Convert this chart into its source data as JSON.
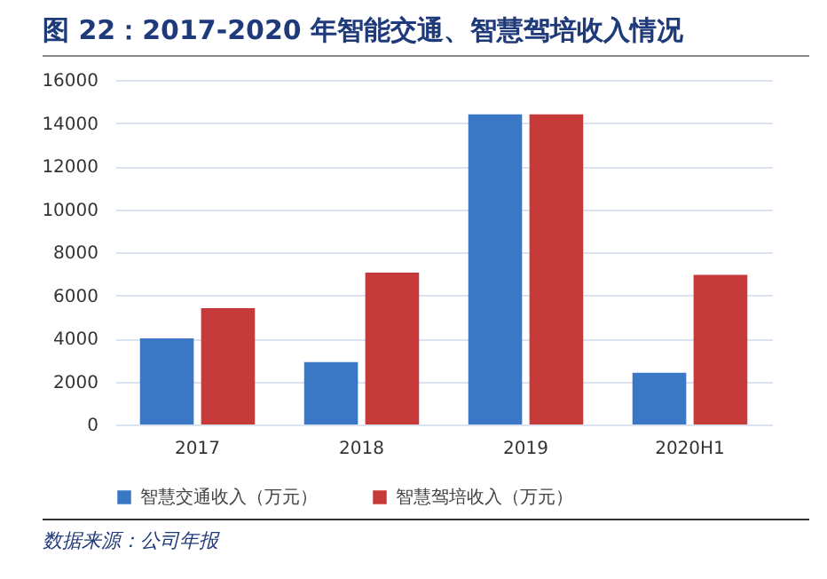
{
  "chart_data": {
    "type": "bar",
    "title": "图 22：2017-2020 年智能交通、智慧驾培收入情况",
    "categories": [
      "2017",
      "2018",
      "2019",
      "2020H1"
    ],
    "series": [
      {
        "name": "智慧交通收入（万元）",
        "color": "#3a78c6",
        "values": [
          4000,
          2900,
          14400,
          2400
        ]
      },
      {
        "name": "智慧驾培收入（万元）",
        "color": "#c63a3a",
        "values": [
          5400,
          7050,
          14400,
          6950
        ]
      }
    ],
    "ylim": [
      0,
      16000
    ],
    "yticks": [
      0,
      2000,
      4000,
      6000,
      8000,
      10000,
      12000,
      14000,
      16000
    ],
    "grid": "y",
    "legend": "bottom",
    "annotations": [
      "数据来源：公司年报"
    ]
  }
}
